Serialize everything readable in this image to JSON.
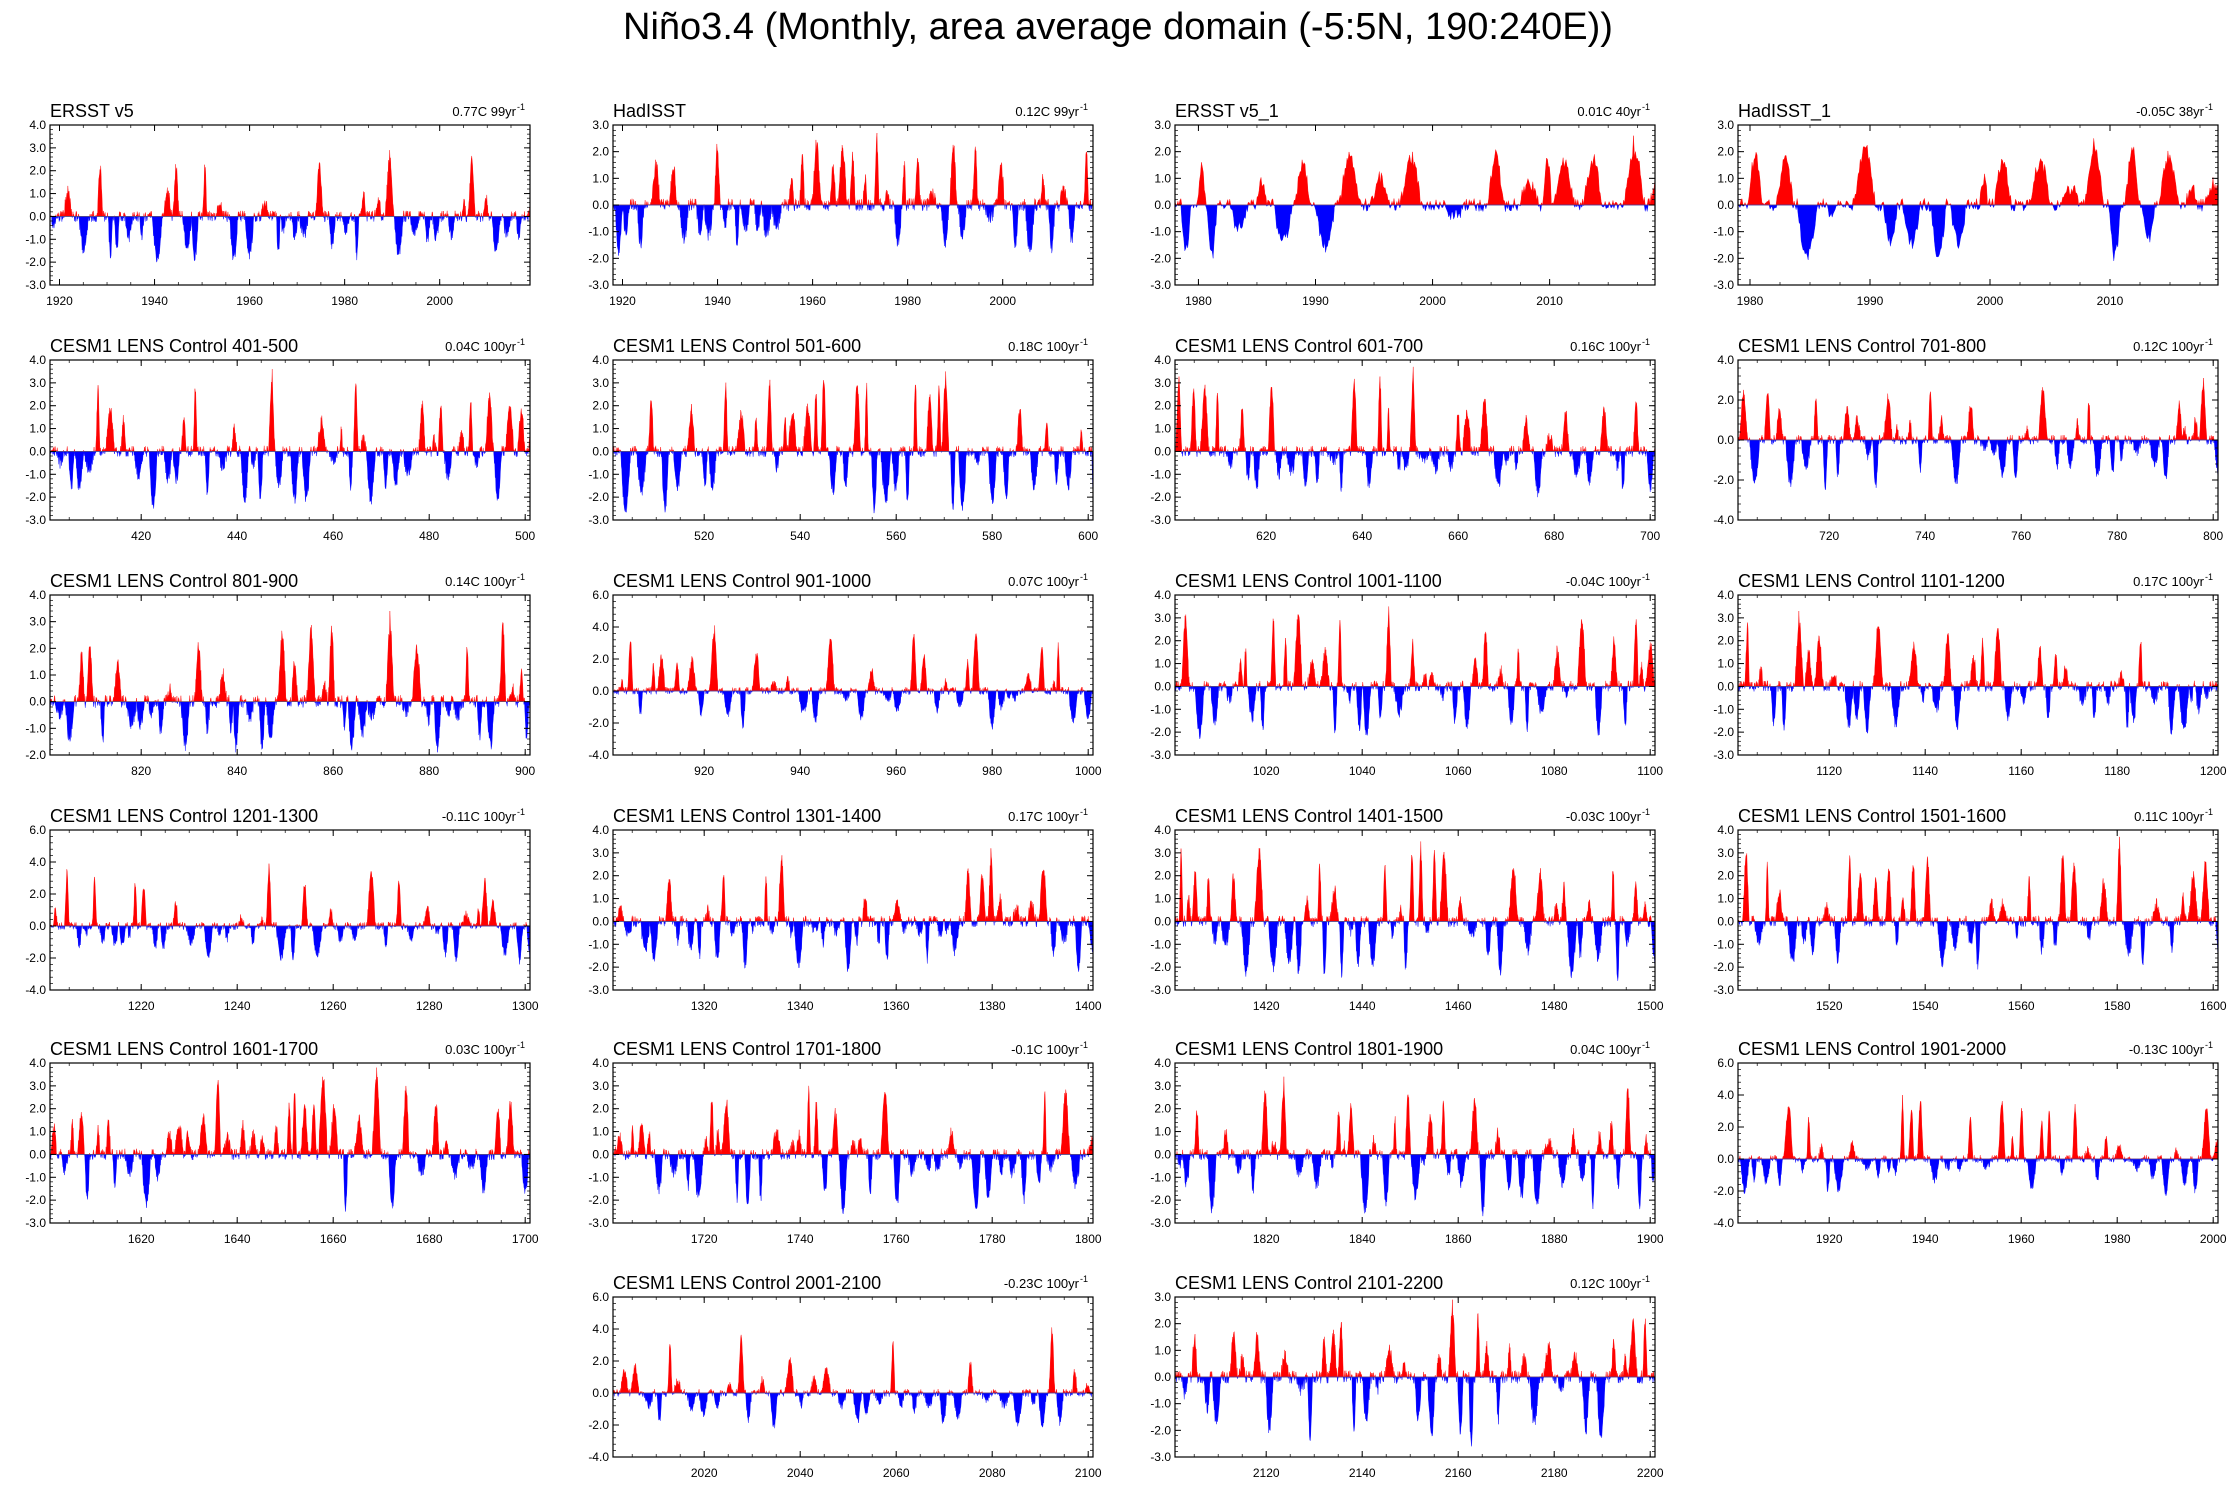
{
  "title": "Niño3.4 (Monthly, area average domain (-5:5N, 190:240E))",
  "colors": {
    "positive": "#ff0000",
    "negative": "#0000ff",
    "frame": "#000000"
  },
  "chart_data": [
    {
      "type": "area",
      "title": "ERSST v5",
      "trend": "0.77C 99yr",
      "trend_sup": "-1",
      "x_range": [
        1918,
        2019
      ],
      "x_ticks": [
        1920,
        1940,
        1960,
        1980,
        2000
      ],
      "ylim": [
        -3,
        4
      ],
      "y_ticks": [
        "4.0",
        "3.0",
        "2.0",
        "1.0",
        "0.0",
        "-1.0",
        "-2.0",
        "-3.0"
      ],
      "peak_pos": 2.9,
      "peak_neg": -2.0,
      "seed": 11
    },
    {
      "type": "area",
      "title": "HadISST",
      "trend": "0.12C 99yr",
      "trend_sup": "-1",
      "x_range": [
        1918,
        2019
      ],
      "x_ticks": [
        1920,
        1940,
        1960,
        1980,
        2000
      ],
      "ylim": [
        -3,
        3
      ],
      "y_ticks": [
        "3.0",
        "2.0",
        "1.0",
        "0.0",
        "-1.0",
        "-2.0",
        "-3.0"
      ],
      "peak_pos": 2.7,
      "peak_neg": -1.9,
      "seed": 12
    },
    {
      "type": "area",
      "title": "ERSST v5_1",
      "trend": "0.01C 40yr",
      "trend_sup": "-1",
      "x_range": [
        1978,
        2019
      ],
      "x_ticks": [
        1980,
        1990,
        2000,
        2010
      ],
      "ylim": [
        -3,
        3
      ],
      "y_ticks": [
        "3.0",
        "2.0",
        "1.0",
        "0.0",
        "-1.0",
        "-2.0",
        "-3.0"
      ],
      "peak_pos": 2.6,
      "peak_neg": -2.0,
      "seed": 13
    },
    {
      "type": "area",
      "title": "HadISST_1",
      "trend": "-0.05C 38yr",
      "trend_sup": "-1",
      "x_range": [
        1979,
        2019
      ],
      "x_ticks": [
        1980,
        1990,
        2000,
        2010
      ],
      "ylim": [
        -3,
        3
      ],
      "y_ticks": [
        "3.0",
        "2.0",
        "1.0",
        "0.0",
        "-1.0",
        "-2.0",
        "-3.0"
      ],
      "peak_pos": 2.5,
      "peak_neg": -2.1,
      "seed": 14
    },
    {
      "type": "area",
      "title": "CESM1 LENS Control 401-500",
      "trend": "0.04C 100yr",
      "trend_sup": "-1",
      "x_range": [
        401,
        501
      ],
      "x_ticks": [
        420,
        440,
        460,
        480,
        500
      ],
      "ylim": [
        -3,
        4
      ],
      "y_ticks": [
        "4.0",
        "3.0",
        "2.0",
        "1.0",
        "0.0",
        "-1.0",
        "-2.0",
        "-3.0"
      ],
      "peak_pos": 3.6,
      "peak_neg": -2.5,
      "seed": 21
    },
    {
      "type": "area",
      "title": "CESM1 LENS Control 501-600",
      "trend": "0.18C 100yr",
      "trend_sup": "-1",
      "x_range": [
        501,
        601
      ],
      "x_ticks": [
        520,
        540,
        560,
        580,
        600
      ],
      "ylim": [
        -3,
        4
      ],
      "y_ticks": [
        "4.0",
        "3.0",
        "2.0",
        "1.0",
        "0.0",
        "-1.0",
        "-2.0",
        "-3.0"
      ],
      "peak_pos": 3.5,
      "peak_neg": -2.7,
      "seed": 22
    },
    {
      "type": "area",
      "title": "CESM1 LENS Control 601-700",
      "trend": "0.16C 100yr",
      "trend_sup": "-1",
      "x_range": [
        601,
        701
      ],
      "x_ticks": [
        620,
        640,
        660,
        680,
        700
      ],
      "ylim": [
        -3,
        4
      ],
      "y_ticks": [
        "4.0",
        "3.0",
        "2.0",
        "1.0",
        "0.0",
        "-1.0",
        "-2.0",
        "-3.0"
      ],
      "peak_pos": 3.7,
      "peak_neg": -2.0,
      "seed": 23
    },
    {
      "type": "area",
      "title": "CESM1 LENS Control 701-800",
      "trend": "0.12C 100yr",
      "trend_sup": "-1",
      "x_range": [
        701,
        801
      ],
      "x_ticks": [
        720,
        740,
        760,
        780,
        800
      ],
      "ylim": [
        -4,
        4
      ],
      "y_ticks": [
        "4.0",
        "2.0",
        "0.0",
        "-2.0",
        "-4.0"
      ],
      "peak_pos": 3.1,
      "peak_neg": -2.5,
      "seed": 24
    },
    {
      "type": "area",
      "title": "CESM1 LENS Control 801-900",
      "trend": "0.14C 100yr",
      "trend_sup": "-1",
      "x_range": [
        801,
        901
      ],
      "x_ticks": [
        820,
        840,
        860,
        880,
        900
      ],
      "ylim": [
        -2,
        4
      ],
      "y_ticks": [
        "4.0",
        "3.0",
        "2.0",
        "1.0",
        "0.0",
        "-1.0",
        "-2.0"
      ],
      "peak_pos": 3.4,
      "peak_neg": -1.9,
      "seed": 31
    },
    {
      "type": "area",
      "title": "CESM1 LENS Control 901-1000",
      "trend": "0.07C 100yr",
      "trend_sup": "-1",
      "x_range": [
        901,
        1001
      ],
      "x_ticks": [
        920,
        940,
        960,
        980,
        1000
      ],
      "ylim": [
        -4,
        6
      ],
      "y_ticks": [
        "6.0",
        "4.0",
        "2.0",
        "0.0",
        "-2.0",
        "-4.0"
      ],
      "peak_pos": 4.1,
      "peak_neg": -2.4,
      "seed": 32
    },
    {
      "type": "area",
      "title": "CESM1 LENS Control 1001-1100",
      "trend": "-0.04C 100yr",
      "trend_sup": "-1",
      "x_range": [
        1001,
        1101
      ],
      "x_ticks": [
        1020,
        1040,
        1060,
        1080,
        1100
      ],
      "ylim": [
        -3,
        4
      ],
      "y_ticks": [
        "4.0",
        "3.0",
        "2.0",
        "1.0",
        "0.0",
        "-1.0",
        "-2.0",
        "-3.0"
      ],
      "peak_pos": 3.5,
      "peak_neg": -2.3,
      "seed": 33
    },
    {
      "type": "area",
      "title": "CESM1 LENS Control 1101-1200",
      "trend": "0.17C 100yr",
      "trend_sup": "-1",
      "x_range": [
        1101,
        1201
      ],
      "x_ticks": [
        1120,
        1140,
        1160,
        1180,
        1200
      ],
      "ylim": [
        -3,
        4
      ],
      "y_ticks": [
        "4.0",
        "3.0",
        "2.0",
        "1.0",
        "0.0",
        "-1.0",
        "-2.0",
        "-3.0"
      ],
      "peak_pos": 3.3,
      "peak_neg": -2.1,
      "seed": 34
    },
    {
      "type": "area",
      "title": "CESM1 LENS Control 1201-1300",
      "trend": "-0.11C 100yr",
      "trend_sup": "-1",
      "x_range": [
        1201,
        1301
      ],
      "x_ticks": [
        1220,
        1240,
        1260,
        1280,
        1300
      ],
      "ylim": [
        -4,
        6
      ],
      "y_ticks": [
        "6.0",
        "4.0",
        "2.0",
        "0.0",
        "-2.0",
        "-4.0"
      ],
      "peak_pos": 3.9,
      "peak_neg": -2.4,
      "seed": 41
    },
    {
      "type": "area",
      "title": "CESM1 LENS Control 1301-1400",
      "trend": "0.17C 100yr",
      "trend_sup": "-1",
      "x_range": [
        1301,
        1401
      ],
      "x_ticks": [
        1320,
        1340,
        1360,
        1380,
        1400
      ],
      "ylim": [
        -3,
        4
      ],
      "y_ticks": [
        "4.0",
        "3.0",
        "2.0",
        "1.0",
        "0.0",
        "-1.0",
        "-2.0",
        "-3.0"
      ],
      "peak_pos": 3.2,
      "peak_neg": -2.2,
      "seed": 42
    },
    {
      "type": "area",
      "title": "CESM1 LENS Control 1401-1500",
      "trend": "-0.03C 100yr",
      "trend_sup": "-1",
      "x_range": [
        1401,
        1501
      ],
      "x_ticks": [
        1420,
        1440,
        1460,
        1480,
        1500
      ],
      "ylim": [
        -3,
        4
      ],
      "y_ticks": [
        "4.0",
        "3.0",
        "2.0",
        "1.0",
        "0.0",
        "-1.0",
        "-2.0",
        "-3.0"
      ],
      "peak_pos": 3.5,
      "peak_neg": -2.6,
      "seed": 43
    },
    {
      "type": "area",
      "title": "CESM1 LENS Control 1501-1600",
      "trend": "0.11C 100yr",
      "trend_sup": "-1",
      "x_range": [
        1501,
        1601
      ],
      "x_ticks": [
        1520,
        1540,
        1560,
        1580,
        1600
      ],
      "ylim": [
        -3,
        4
      ],
      "y_ticks": [
        "4.0",
        "3.0",
        "2.0",
        "1.0",
        "0.0",
        "-1.0",
        "-2.0",
        "-3.0"
      ],
      "peak_pos": 3.7,
      "peak_neg": -2.1,
      "seed": 44
    },
    {
      "type": "area",
      "title": "CESM1 LENS Control 1601-1700",
      "trend": "0.03C 100yr",
      "trend_sup": "-1",
      "x_range": [
        1601,
        1701
      ],
      "x_ticks": [
        1620,
        1640,
        1660,
        1680,
        1700
      ],
      "ylim": [
        -3,
        4
      ],
      "y_ticks": [
        "4.0",
        "3.0",
        "2.0",
        "1.0",
        "0.0",
        "-1.0",
        "-2.0",
        "-3.0"
      ],
      "peak_pos": 3.8,
      "peak_neg": -2.5,
      "seed": 51
    },
    {
      "type": "area",
      "title": "CESM1 LENS Control 1701-1800",
      "trend": "-0.1C 100yr",
      "trend_sup": "-1",
      "x_range": [
        1701,
        1801
      ],
      "x_ticks": [
        1720,
        1740,
        1760,
        1780,
        1800
      ],
      "ylim": [
        -3,
        4
      ],
      "y_ticks": [
        "4.0",
        "3.0",
        "2.0",
        "1.0",
        "0.0",
        "-1.0",
        "-2.0",
        "-3.0"
      ],
      "peak_pos": 3.0,
      "peak_neg": -2.6,
      "seed": 52
    },
    {
      "type": "area",
      "title": "CESM1 LENS Control 1801-1900",
      "trend": "0.04C 100yr",
      "trend_sup": "-1",
      "x_range": [
        1801,
        1901
      ],
      "x_ticks": [
        1820,
        1840,
        1860,
        1880,
        1900
      ],
      "ylim": [
        -3,
        4
      ],
      "y_ticks": [
        "4.0",
        "3.0",
        "2.0",
        "1.0",
        "0.0",
        "-1.0",
        "-2.0",
        "-3.0"
      ],
      "peak_pos": 3.4,
      "peak_neg": -2.7,
      "seed": 53
    },
    {
      "type": "area",
      "title": "CESM1 LENS Control 1901-2000",
      "trend": "-0.13C 100yr",
      "trend_sup": "-1",
      "x_range": [
        1901,
        2001
      ],
      "x_ticks": [
        1920,
        1940,
        1960,
        1980,
        2000
      ],
      "ylim": [
        -4,
        6
      ],
      "y_ticks": [
        "6.0",
        "4.0",
        "2.0",
        "0.0",
        "-2.0",
        "-4.0"
      ],
      "peak_pos": 4.0,
      "peak_neg": -2.3,
      "seed": 54
    },
    {
      "type": "area",
      "title": "CESM1 LENS Control 2001-2100",
      "trend": "-0.23C 100yr",
      "trend_sup": "-1",
      "x_range": [
        2001,
        2101
      ],
      "x_ticks": [
        2020,
        2040,
        2060,
        2080,
        2100
      ],
      "ylim": [
        -4,
        6
      ],
      "y_ticks": [
        "6.0",
        "4.0",
        "2.0",
        "0.0",
        "-2.0",
        "-4.0"
      ],
      "peak_pos": 4.1,
      "peak_neg": -2.2,
      "seed": 61
    },
    {
      "type": "area",
      "title": "CESM1 LENS Control 2101-2200",
      "trend": "0.12C 100yr",
      "trend_sup": "-1",
      "x_range": [
        2101,
        2201
      ],
      "x_ticks": [
        2120,
        2140,
        2160,
        2180,
        2200
      ],
      "ylim": [
        -3,
        3
      ],
      "y_ticks": [
        "3.0",
        "2.0",
        "1.0",
        "0.0",
        "-1.0",
        "-2.0",
        "-3.0"
      ],
      "peak_pos": 2.9,
      "peak_neg": -2.6,
      "seed": 62
    }
  ]
}
